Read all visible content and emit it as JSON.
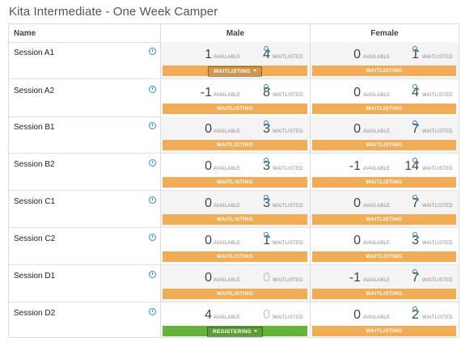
{
  "page_title": "Kita Intermediate - One Week Camper",
  "columns": {
    "name": "Name",
    "male": "Male",
    "female": "Female"
  },
  "labels": {
    "available": "AVAILABLE",
    "waitlisted": "WAITLISTED"
  },
  "colors": {
    "waitlisting": "#f0ac56",
    "registering": "#66b33b",
    "accent": "#2e8bd0"
  },
  "sessions": [
    {
      "name": "Session A1",
      "male": {
        "available": "1",
        "waitlisted": "4",
        "status": "WAITLISTING",
        "has_dropdown": true
      },
      "female": {
        "available": "0",
        "waitlisted": "1",
        "status": "WAITLISTING",
        "has_dropdown": false
      }
    },
    {
      "name": "Session A2",
      "male": {
        "available": "-1",
        "waitlisted": "8",
        "status": "WAITLISTING",
        "has_dropdown": false
      },
      "female": {
        "available": "0",
        "waitlisted": "4",
        "status": "WAITLISTING",
        "has_dropdown": false
      }
    },
    {
      "name": "Session B1",
      "male": {
        "available": "0",
        "waitlisted": "3",
        "status": "WAITLISTING",
        "has_dropdown": false
      },
      "female": {
        "available": "0",
        "waitlisted": "7",
        "status": "WAITLISTING",
        "has_dropdown": false
      }
    },
    {
      "name": "Session B2",
      "male": {
        "available": "0",
        "waitlisted": "3",
        "status": "WAITLISTING",
        "has_dropdown": false
      },
      "female": {
        "available": "-1",
        "waitlisted": "14",
        "status": "WAITLISTING",
        "has_dropdown": false
      }
    },
    {
      "name": "Session C1",
      "male": {
        "available": "0",
        "waitlisted": "3",
        "status": "WAITLISTING",
        "has_dropdown": false
      },
      "female": {
        "available": "0",
        "waitlisted": "7",
        "status": "WAITLISTING",
        "has_dropdown": false
      }
    },
    {
      "name": "Session C2",
      "male": {
        "available": "0",
        "waitlisted": "1",
        "status": "WAITLISTING",
        "has_dropdown": false
      },
      "female": {
        "available": "0",
        "waitlisted": "3",
        "status": "WAITLISTING",
        "has_dropdown": false
      }
    },
    {
      "name": "Session D1",
      "male": {
        "available": "0",
        "waitlisted": "0",
        "status": "WAITLISTING",
        "has_dropdown": false
      },
      "female": {
        "available": "-1",
        "waitlisted": "7",
        "status": "WAITLISTING",
        "has_dropdown": false
      }
    },
    {
      "name": "Session D2",
      "male": {
        "available": "4",
        "waitlisted": "0",
        "status": "REGISTERING",
        "has_dropdown": true
      },
      "female": {
        "available": "0",
        "waitlisted": "2",
        "status": "WAITLISTING",
        "has_dropdown": false
      }
    }
  ]
}
